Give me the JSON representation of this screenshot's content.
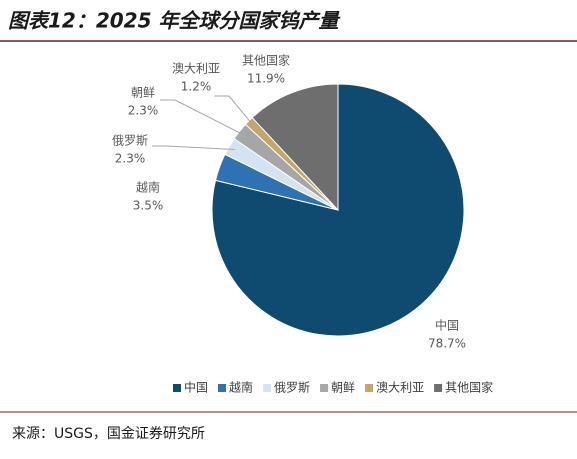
{
  "chart_data": {
    "type": "pie",
    "title": "图表12：2025 年全球分国家钨产量",
    "categories": [
      "中国",
      "越南",
      "俄罗斯",
      "朝鲜",
      "澳大利亚",
      "其他国家"
    ],
    "values": [
      78.7,
      3.5,
      2.3,
      2.3,
      1.2,
      11.9
    ],
    "value_labels": [
      "78.7%",
      "3.5%",
      "2.3%",
      "2.3%",
      "1.2%",
      "11.9%"
    ],
    "colors": [
      "#0f4a70",
      "#2f72b3",
      "#d4e3f1",
      "#a6a6a6",
      "#c6a569",
      "#6e6e6e"
    ],
    "legend": "bottom"
  },
  "footer": {
    "source": "来源：USGS，国金证券研究所"
  }
}
